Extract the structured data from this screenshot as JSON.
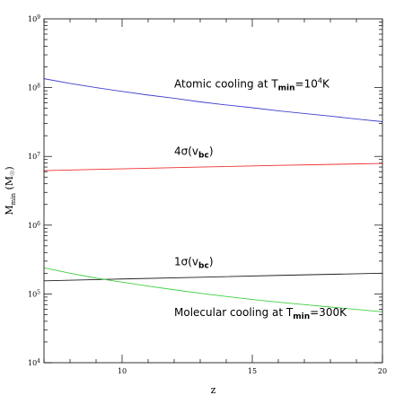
{
  "chart_data": {
    "type": "line",
    "xlabel": "z",
    "ylabel": "M_min (M_sun)",
    "ylabel_main": "M",
    "ylabel_sub": "min",
    "ylabel_unit": "(M",
    "ylabel_unit_sub": "☉",
    "ylabel_unit_close": ")",
    "xlim": [
      7,
      20
    ],
    "ylim": [
      10000,
      1000000000
    ],
    "yscale": "log",
    "x_ticks": [
      10,
      15,
      20
    ],
    "x_tick_labels": [
      "10",
      "15",
      "20"
    ],
    "y_ticks": [
      10000,
      100000,
      1000000,
      10000000,
      100000000,
      1000000000
    ],
    "y_tick_base": "10",
    "y_tick_exponents": [
      "4",
      "5",
      "6",
      "7",
      "8",
      "9"
    ],
    "grid": false,
    "legend": "none",
    "series": [
      {
        "key": "atomic",
        "color": "#4040d0",
        "x": [
          7,
          8,
          9,
          10,
          11,
          12,
          13,
          14,
          15,
          16,
          17,
          18,
          19,
          20
        ],
        "y": [
          135000000,
          115000000,
          100000000,
          88000000,
          78000000,
          70000000,
          62000000,
          56000000,
          51000000,
          46000000,
          42000000,
          38500000,
          35000000,
          32000000
        ]
      },
      {
        "key": "four_sigma",
        "color": "#f03030",
        "x": [
          7,
          10,
          13,
          16,
          20
        ],
        "y": [
          6200000,
          6600000,
          7000000,
          7400000,
          7900000
        ]
      },
      {
        "key": "one_sigma",
        "color": "#202020",
        "x": [
          7,
          10,
          13,
          16,
          20
        ],
        "y": [
          155000,
          165000,
          175000,
          186000,
          200000
        ]
      },
      {
        "key": "molecular",
        "color": "#40d040",
        "x": [
          7,
          8,
          9,
          10,
          11,
          12,
          13,
          14,
          15,
          16,
          17,
          18,
          19,
          20
        ],
        "y": [
          240000,
          200000,
          170000,
          148000,
          130000,
          115000,
          102000,
          92000,
          83000,
          76000,
          70000,
          64500,
          59500,
          55000
        ]
      }
    ],
    "annotations": [
      {
        "key": "atomic",
        "x": 12.0,
        "y": 100000000,
        "parts": [
          {
            "t": "Atomic cooling at T",
            "s": "main"
          },
          {
            "t": "min",
            "s": "sub"
          },
          {
            "t": "=10",
            "s": "main"
          },
          {
            "t": "4",
            "s": "sup"
          },
          {
            "t": "K",
            "s": "main"
          }
        ]
      },
      {
        "key": "four_sigma",
        "x": 12.0,
        "y": 10500000,
        "parts": [
          {
            "t": "4σ(v",
            "s": "main"
          },
          {
            "t": "bc",
            "s": "sub"
          },
          {
            "t": ")",
            "s": "main"
          }
        ]
      },
      {
        "key": "one_sigma",
        "x": 12.0,
        "y": 260000,
        "parts": [
          {
            "t": "1σ(v",
            "s": "main"
          },
          {
            "t": "bc",
            "s": "sub"
          },
          {
            "t": ")",
            "s": "main"
          }
        ]
      },
      {
        "key": "molecular",
        "x": 12.0,
        "y": 48000,
        "parts": [
          {
            "t": "Molecular cooling at T",
            "s": "main"
          },
          {
            "t": "min",
            "s": "sub"
          },
          {
            "t": "=300K",
            "s": "main"
          }
        ]
      }
    ]
  }
}
